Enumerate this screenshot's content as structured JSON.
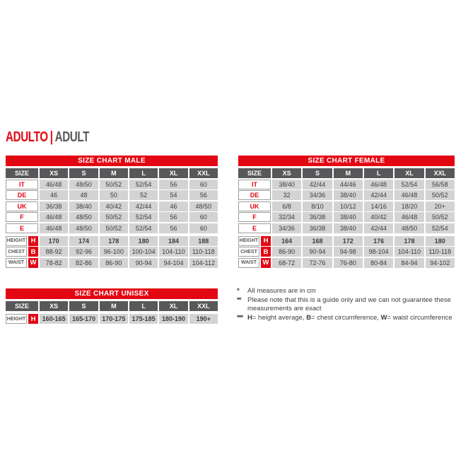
{
  "page": {
    "title_primary": "ADULTO",
    "title_separator": "|",
    "title_secondary": "ADULT"
  },
  "colors": {
    "red": "#e30613",
    "dark_gray": "#58585a",
    "cell_gray": "#d3d3d4"
  },
  "tables": {
    "male": {
      "title": "SIZE CHART MALE",
      "size_col_header": "SIZE",
      "columns": [
        "XS",
        "S",
        "M",
        "L",
        "XL",
        "XXL"
      ],
      "size_rows": [
        {
          "label": "IT",
          "values": [
            "46/48",
            "48/50",
            "50/52",
            "52/54",
            "56",
            "60"
          ]
        },
        {
          "label": "DE",
          "values": [
            "46",
            "48",
            "50",
            "52",
            "54",
            "56"
          ]
        },
        {
          "label": "UK",
          "values": [
            "36/38",
            "38/40",
            "40/42",
            "42/44",
            "46",
            "48/50"
          ]
        },
        {
          "label": "F",
          "values": [
            "46/48",
            "48/50",
            "50/52",
            "52/54",
            "56",
            "60"
          ]
        },
        {
          "label": "E",
          "values": [
            "46/48",
            "48/50",
            "50/52",
            "52/54",
            "56",
            "60"
          ]
        }
      ],
      "measure_rows": [
        {
          "label": "HEIGHT",
          "letter": "H",
          "values": [
            "170",
            "174",
            "178",
            "180",
            "184",
            "188"
          ]
        },
        {
          "label": "CHEST",
          "letter": "B",
          "values": [
            "88-92",
            "92-96",
            "96-100",
            "100-104",
            "104-110",
            "110-118"
          ]
        },
        {
          "label": "WAIST",
          "letter": "W",
          "values": [
            "78-82",
            "82-86",
            "86-90",
            "90-94",
            "94-104",
            "104-112"
          ]
        }
      ]
    },
    "female": {
      "title": "SIZE CHART FEMALE",
      "size_col_header": "SIZE",
      "columns": [
        "XS",
        "S",
        "M",
        "L",
        "XL",
        "XXL"
      ],
      "size_rows": [
        {
          "label": "IT",
          "values": [
            "38/40",
            "42/44",
            "44/46",
            "46/48",
            "52/54",
            "56/58"
          ]
        },
        {
          "label": "DE",
          "values": [
            "32",
            "34/36",
            "38/40",
            "42/44",
            "46/48",
            "50/52"
          ]
        },
        {
          "label": "UK",
          "values": [
            "6/8",
            "8/10",
            "10/12",
            "14/16",
            "18/20",
            "20+"
          ]
        },
        {
          "label": "F",
          "values": [
            "32/34",
            "36/38",
            "38/40",
            "40/42",
            "46/48",
            "50/52"
          ]
        },
        {
          "label": "E",
          "values": [
            "34/36",
            "36/38",
            "38/40",
            "42/44",
            "48/50",
            "52/54"
          ]
        }
      ],
      "measure_rows": [
        {
          "label": "HEIGHT",
          "letter": "H",
          "values": [
            "164",
            "168",
            "172",
            "176",
            "178",
            "180"
          ]
        },
        {
          "label": "CHEST",
          "letter": "B",
          "values": [
            "86-90",
            "90-94",
            "94-98",
            "98-104",
            "104-110",
            "110-118"
          ]
        },
        {
          "label": "WAIST",
          "letter": "W",
          "values": [
            "68-72",
            "72-76",
            "76-80",
            "80-84",
            "84-94",
            "94-102"
          ]
        }
      ]
    },
    "unisex": {
      "title": "SIZE CHART UNISEX",
      "size_col_header": "SIZE",
      "columns": [
        "XS",
        "S",
        "M",
        "L",
        "XL",
        "XXL"
      ],
      "size_rows": [],
      "measure_rows": [
        {
          "label": "HEIGHT",
          "letter": "H",
          "values": [
            "160-165",
            "165-170",
            "170-175",
            "175-185",
            "180-190",
            "190+"
          ]
        }
      ]
    }
  },
  "footnotes": [
    {
      "marker": "*",
      "parts": [
        {
          "text": "All measures are in cm"
        }
      ]
    },
    {
      "marker": "**",
      "parts": [
        {
          "text": "Please note that this is a guide only and we can not guarantee these measurements are exact"
        }
      ]
    },
    {
      "marker": "***",
      "parts": [
        {
          "text": "H",
          "bold": true
        },
        {
          "text": "= height average, "
        },
        {
          "text": "B",
          "bold": true
        },
        {
          "text": "= chest circumference, "
        },
        {
          "text": "W",
          "bold": true
        },
        {
          "text": "= waist circumference"
        }
      ]
    }
  ]
}
